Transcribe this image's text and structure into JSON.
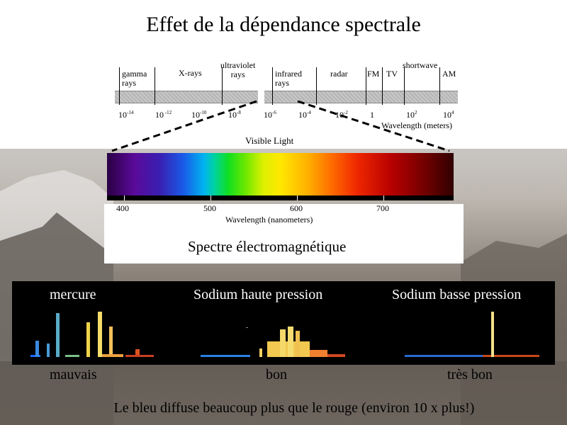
{
  "title": "Effet de la dépendance spectrale",
  "em_spectrum": {
    "bands": [
      {
        "label": "gamma\nrays"
      },
      {
        "label": "X-rays"
      },
      {
        "label": "ultraviolet\nrays"
      },
      {
        "label": "infrared\nrays"
      },
      {
        "label": "radar"
      },
      {
        "label": "FM"
      },
      {
        "label": "TV"
      },
      {
        "label": "shortwave"
      },
      {
        "label": "AM"
      }
    ],
    "ticks": [
      {
        "base": "10",
        "exp": "-14"
      },
      {
        "base": "10",
        "exp": " -12"
      },
      {
        "base": "10",
        "exp": "-10"
      },
      {
        "base": "10",
        "exp": "-8"
      },
      {
        "base": "10",
        "exp": "-6"
      },
      {
        "base": "10",
        "exp": "-4"
      },
      {
        "base": "10",
        "exp": "-2"
      },
      {
        "base": "1",
        "exp": ""
      },
      {
        "base": "10",
        "exp": "2"
      },
      {
        "base": "10",
        "exp": "4"
      }
    ],
    "axis_label": "Wavelength (meters)"
  },
  "visible": {
    "label": "Visible Light",
    "ticks": [
      "400",
      "500",
      "600",
      "700"
    ],
    "axis_label": "Wavelength (nanometers)",
    "caption": "Spectre électromagnétique"
  },
  "lamps": [
    {
      "name": "mercure",
      "rating": "mauvais"
    },
    {
      "name": "Sodium haute pression",
      "rating": "bon"
    },
    {
      "name": "Sodium basse pression",
      "rating": "très bon"
    }
  ],
  "footer": "Le bleu diffuse beaucoup plus que le rouge (environ 10 x plus!)"
}
